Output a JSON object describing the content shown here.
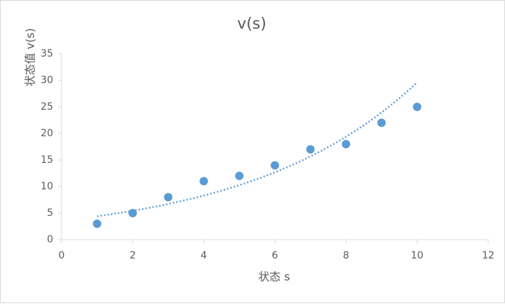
{
  "chart_data": {
    "type": "scatter",
    "title": "v(s)",
    "x_label": "状态 s",
    "y_label": "状态值 v(s)",
    "series": [
      {
        "name": "v(s)",
        "color": "#5b9bd5",
        "x": [
          1,
          2,
          3,
          4,
          5,
          6,
          7,
          8,
          9,
          10
        ],
        "values": [
          3,
          5,
          8,
          11,
          12,
          14,
          17,
          18,
          22,
          25
        ]
      }
    ],
    "trendline": "exponential",
    "xlim": [
      0,
      12
    ],
    "xticks": [
      0,
      2,
      4,
      6,
      8,
      10,
      12
    ],
    "ylim": [
      0,
      35
    ],
    "yticks": [
      0,
      5,
      10,
      15,
      20,
      25,
      30,
      35
    ],
    "grid": false
  }
}
